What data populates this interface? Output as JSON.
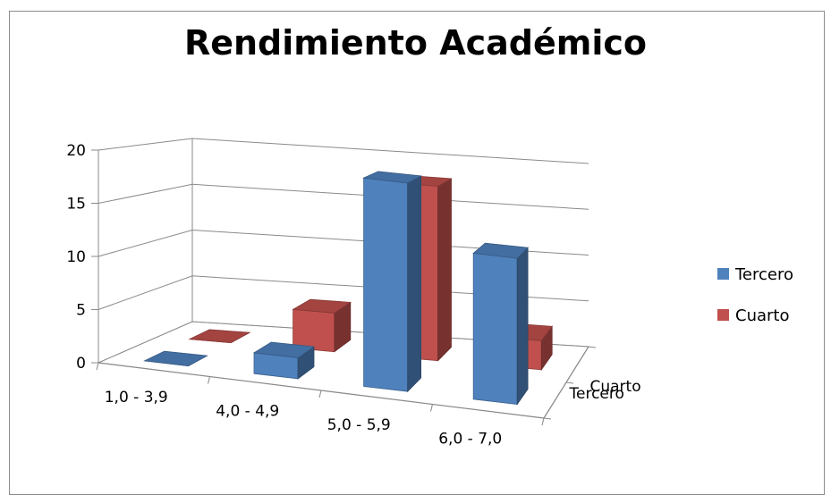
{
  "chart_data": {
    "type": "bar",
    "chart_style": "3d-clustered-column",
    "title": "Rendimiento Académico",
    "categories": [
      "1,0 - 3,9",
      "4,0 - 4,9",
      "5,0 - 5,9",
      "6,0 - 7,0"
    ],
    "series": [
      {
        "name": "Tercero",
        "values": [
          0,
          2,
          20,
          14
        ],
        "color": "#4f81bd"
      },
      {
        "name": "Cuarto",
        "values": [
          0,
          4,
          18,
          3
        ],
        "color": "#c0504d"
      }
    ],
    "yticks": [
      "0",
      "5",
      "10",
      "15",
      "20"
    ],
    "ylim": [
      0,
      20
    ],
    "depth_labels": [
      "Cuarto",
      "Tercero"
    ],
    "legend": {
      "position": "right",
      "entries": [
        "Tercero",
        "Cuarto"
      ]
    },
    "grid": true
  }
}
